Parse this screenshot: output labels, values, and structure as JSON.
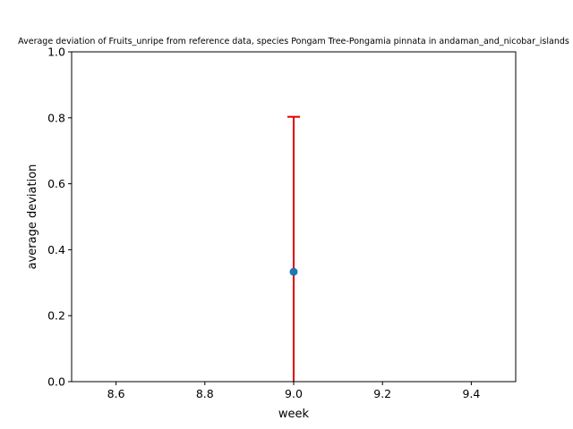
{
  "chart_data": {
    "type": "scatter",
    "title": "Average deviation of Fruits_unripe from reference data, species Pongam Tree-Pongamia pinnata in andaman_and_nicobar_islands",
    "xlabel": "week",
    "ylabel": "average deviation",
    "xlim": [
      8.5,
      9.5
    ],
    "ylim": [
      0.0,
      1.0
    ],
    "x_ticks": [
      "8.6",
      "8.8",
      "9.0",
      "9.2",
      "9.4"
    ],
    "y_ticks": [
      "0.0",
      "0.2",
      "0.4",
      "0.6",
      "0.8",
      "1.0"
    ],
    "grid": false,
    "series": [
      {
        "points": [
          {
            "x": 9.0,
            "y": 0.333,
            "yerr_low": 0.333,
            "yerr_high": 0.47
          }
        ],
        "marker_color": "#1f77b4",
        "errorbar_color": "#e00000"
      }
    ]
  }
}
